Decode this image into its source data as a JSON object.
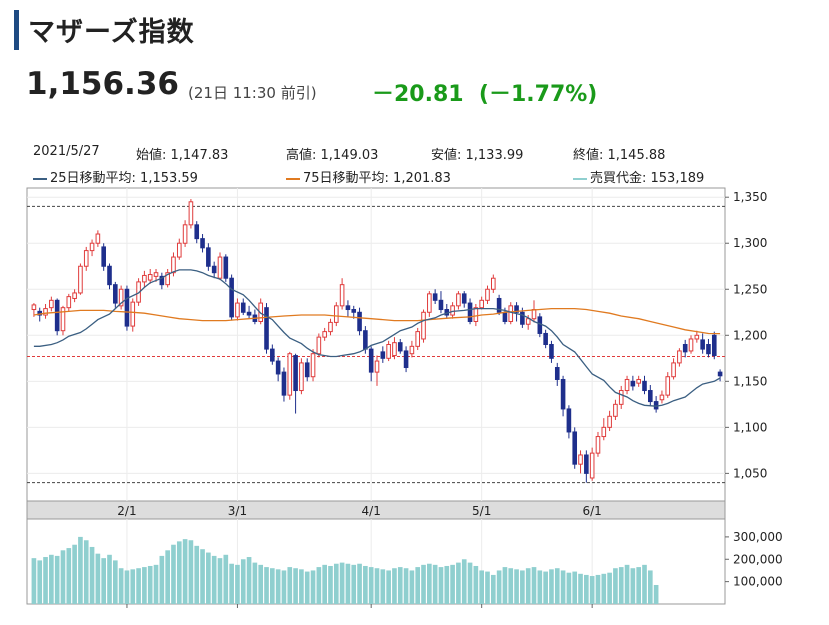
{
  "header": {
    "title": "マザーズ指数",
    "price": "1,156.36",
    "price_time": "(21日 11:30 前引)",
    "change": "－20.81",
    "change_pct": "(－1.77%)"
  },
  "info": {
    "date": "2021/5/27",
    "open": "始値: 1,147.83",
    "high": "高値: 1,149.03",
    "low": "安値: 1,133.99",
    "close": "終値: 1,145.88",
    "ma25": "25日移動平均: 1,153.59",
    "ma75": "75日移動平均: 1,201.83",
    "volume": "売買代金: 153,189"
  },
  "colors": {
    "up": "#e03c3c",
    "down": "#1e2f8c",
    "ma25": "#3b5f82",
    "ma75": "#e07a20",
    "volume": "#8fcfcf",
    "ref_line": "#e03c3c",
    "change": "#1a9a1a"
  },
  "chart_data": [
    {
      "type": "candlestick",
      "title": "",
      "x_ticks": [
        "2/1",
        "3/1",
        "4/1",
        "5/1",
        "6/1"
      ],
      "x_tick_index": [
        16,
        35,
        58,
        77,
        96
      ],
      "ylim": [
        1020,
        1360
      ],
      "y_ticks": [
        1050,
        1100,
        1150,
        1200,
        1250,
        1300,
        1350
      ],
      "y_tick_labels": [
        "1,050",
        "1,100",
        "1,150",
        "1,200",
        "1,250",
        "1,300",
        "1,350"
      ],
      "reference_lines": [
        1177,
        1340,
        1040
      ],
      "candles": [
        [
          1228,
          1233,
          1220,
          1235
        ],
        [
          1226,
          1222,
          1215,
          1230
        ],
        [
          1222,
          1229,
          1218,
          1234
        ],
        [
          1230,
          1238,
          1226,
          1242
        ],
        [
          1238,
          1205,
          1200,
          1240
        ],
        [
          1205,
          1230,
          1200,
          1232
        ],
        [
          1230,
          1242,
          1226,
          1245
        ],
        [
          1240,
          1246,
          1236,
          1250
        ],
        [
          1246,
          1275,
          1244,
          1278
        ],
        [
          1275,
          1292,
          1270,
          1296
        ],
        [
          1292,
          1300,
          1286,
          1304
        ],
        [
          1300,
          1310,
          1296,
          1314
        ],
        [
          1296,
          1275,
          1270,
          1300
        ],
        [
          1275,
          1255,
          1250,
          1278
        ],
        [
          1255,
          1235,
          1230,
          1258
        ],
        [
          1232,
          1250,
          1228,
          1254
        ],
        [
          1250,
          1210,
          1205,
          1254
        ],
        [
          1210,
          1236,
          1204,
          1240
        ],
        [
          1236,
          1258,
          1232,
          1262
        ],
        [
          1258,
          1265,
          1252,
          1270
        ],
        [
          1260,
          1266,
          1256,
          1272
        ],
        [
          1264,
          1268,
          1258,
          1272
        ],
        [
          1264,
          1255,
          1250,
          1268
        ],
        [
          1255,
          1268,
          1252,
          1272
        ],
        [
          1268,
          1285,
          1264,
          1290
        ],
        [
          1285,
          1300,
          1282,
          1305
        ],
        [
          1300,
          1320,
          1296,
          1325
        ],
        [
          1320,
          1345,
          1316,
          1348
        ],
        [
          1320,
          1305,
          1300,
          1324
        ],
        [
          1305,
          1295,
          1290,
          1310
        ],
        [
          1295,
          1275,
          1270,
          1300
        ],
        [
          1275,
          1268,
          1262,
          1280
        ],
        [
          1262,
          1285,
          1260,
          1290
        ],
        [
          1285,
          1262,
          1258,
          1288
        ],
        [
          1262,
          1220,
          1216,
          1266
        ],
        [
          1220,
          1235,
          1216,
          1240
        ],
        [
          1235,
          1225,
          1222,
          1240
        ],
        [
          1225,
          1222,
          1218,
          1232
        ],
        [
          1222,
          1215,
          1212,
          1228
        ],
        [
          1215,
          1235,
          1212,
          1240
        ],
        [
          1230,
          1185,
          1180,
          1235
        ],
        [
          1185,
          1172,
          1168,
          1190
        ],
        [
          1172,
          1158,
          1150,
          1176
        ],
        [
          1160,
          1135,
          1128,
          1165
        ],
        [
          1135,
          1180,
          1130,
          1182
        ],
        [
          1178,
          1140,
          1115,
          1180
        ],
        [
          1140,
          1170,
          1136,
          1175
        ],
        [
          1170,
          1155,
          1150,
          1175
        ],
        [
          1155,
          1180,
          1150,
          1185
        ],
        [
          1180,
          1198,
          1176,
          1202
        ],
        [
          1198,
          1204,
          1194,
          1208
        ],
        [
          1204,
          1214,
          1200,
          1218
        ],
        [
          1214,
          1232,
          1210,
          1236
        ],
        [
          1232,
          1255,
          1228,
          1262
        ],
        [
          1232,
          1228,
          1220,
          1238
        ],
        [
          1228,
          1225,
          1218,
          1232
        ],
        [
          1225,
          1205,
          1200,
          1230
        ],
        [
          1205,
          1185,
          1180,
          1210
        ],
        [
          1185,
          1160,
          1150,
          1188
        ],
        [
          1160,
          1172,
          1145,
          1178
        ],
        [
          1182,
          1175,
          1170,
          1188
        ],
        [
          1175,
          1190,
          1172,
          1194
        ],
        [
          1178,
          1192,
          1174,
          1198
        ],
        [
          1192,
          1183,
          1180,
          1196
        ],
        [
          1183,
          1165,
          1160,
          1188
        ],
        [
          1180,
          1188,
          1176,
          1194
        ],
        [
          1188,
          1204,
          1184,
          1208
        ],
        [
          1196,
          1225,
          1192,
          1228
        ],
        [
          1225,
          1245,
          1220,
          1248
        ],
        [
          1245,
          1238,
          1234,
          1250
        ],
        [
          1238,
          1228,
          1224,
          1248
        ],
        [
          1228,
          1222,
          1218,
          1234
        ],
        [
          1222,
          1232,
          1218,
          1236
        ],
        [
          1232,
          1245,
          1228,
          1248
        ],
        [
          1245,
          1235,
          1230,
          1248
        ],
        [
          1235,
          1215,
          1212,
          1240
        ],
        [
          1215,
          1230,
          1210,
          1234
        ],
        [
          1230,
          1238,
          1228,
          1242
        ],
        [
          1238,
          1250,
          1234,
          1254
        ],
        [
          1250,
          1262,
          1246,
          1266
        ],
        [
          1240,
          1225,
          1222,
          1244
        ],
        [
          1225,
          1215,
          1212,
          1230
        ],
        [
          1215,
          1232,
          1212,
          1236
        ],
        [
          1232,
          1225,
          1215,
          1236
        ],
        [
          1225,
          1212,
          1208,
          1230
        ],
        [
          1212,
          1218,
          1206,
          1222
        ],
        [
          1218,
          1228,
          1214,
          1238
        ],
        [
          1220,
          1202,
          1198,
          1224
        ],
        [
          1202,
          1190,
          1186,
          1206
        ],
        [
          1190,
          1175,
          1170,
          1194
        ],
        [
          1165,
          1152,
          1145,
          1170
        ],
        [
          1152,
          1120,
          1112,
          1156
        ],
        [
          1120,
          1095,
          1088,
          1124
        ],
        [
          1095,
          1060,
          1055,
          1100
        ],
        [
          1060,
          1070,
          1050,
          1075
        ],
        [
          1070,
          1050,
          1040,
          1075
        ],
        [
          1045,
          1072,
          1042,
          1078
        ],
        [
          1072,
          1090,
          1068,
          1095
        ],
        [
          1090,
          1100,
          1086,
          1110
        ],
        [
          1100,
          1112,
          1096,
          1118
        ],
        [
          1112,
          1125,
          1108,
          1130
        ],
        [
          1125,
          1140,
          1120,
          1145
        ],
        [
          1140,
          1152,
          1136,
          1156
        ],
        [
          1150,
          1145,
          1140,
          1156
        ],
        [
          1148,
          1152,
          1144,
          1156
        ],
        [
          1150,
          1140,
          1136,
          1156
        ],
        [
          1140,
          1128,
          1124,
          1146
        ],
        [
          1128,
          1120,
          1116,
          1134
        ],
        [
          1130,
          1135,
          1126,
          1140
        ],
        [
          1135,
          1155,
          1132,
          1160
        ],
        [
          1155,
          1170,
          1152,
          1175
        ],
        [
          1170,
          1183,
          1166,
          1186
        ],
        [
          1190,
          1182,
          1176,
          1195
        ],
        [
          1183,
          1196,
          1180,
          1200
        ],
        [
          1196,
          1200,
          1192,
          1205
        ],
        [
          1195,
          1185,
          1180,
          1202
        ],
        [
          1190,
          1180,
          1176,
          1196
        ],
        [
          1200,
          1178,
          1174,
          1204
        ],
        [
          1160,
          1156,
          1150,
          1163
        ]
      ],
      "ma25": [
        1188,
        1188,
        1190,
        1192,
        1195,
        1199,
        1203,
        1207,
        1212,
        1217,
        1223,
        1229,
        1235,
        1240,
        1246,
        1252,
        1257,
        1262,
        1266,
        1269,
        1271,
        1271,
        1270,
        1268,
        1265,
        1261,
        1256,
        1250,
        1244,
        1238,
        1231,
        1224,
        1217,
        1210,
        1203,
        1197,
        1191,
        1186,
        1182,
        1179,
        1177,
        1177,
        1178,
        1180,
        1182,
        1185,
        1189,
        1193,
        1197,
        1201,
        1205,
        1209,
        1213,
        1216,
        1219,
        1222,
        1224,
        1226,
        1227,
        1228,
        1229,
        1229,
        1229,
        1228,
        1227,
        1225,
        1222,
        1219,
        1215,
        1210,
        1205,
        1198,
        1190,
        1182,
        1174,
        1166,
        1158,
        1151,
        1144,
        1138,
        1133,
        1129,
        1126,
        1124,
        1123,
        1124,
        1126,
        1129,
        1133,
        1138,
        1143,
        1147,
        1150,
        1153.6
      ],
      "ma75": [
        1222,
        1224,
        1225,
        1226,
        1227,
        1227,
        1227,
        1226,
        1225,
        1224,
        1222,
        1220,
        1218,
        1217,
        1216,
        1216,
        1216,
        1217,
        1218,
        1219,
        1220,
        1221,
        1222,
        1222,
        1222,
        1221,
        1220,
        1219,
        1218,
        1217,
        1216,
        1216,
        1216,
        1217,
        1218,
        1219,
        1220,
        1222,
        1223,
        1225,
        1226,
        1227,
        1228,
        1229,
        1229,
        1229,
        1228,
        1226,
        1224,
        1221,
        1218,
        1215,
        1212,
        1209,
        1206,
        1204,
        1202,
        1201.8
      ],
      "volume_ylim": [
        0,
        380000
      ],
      "volume_ticks": [
        100000,
        200000,
        300000
      ],
      "volume_tick_labels": [
        "100,000",
        "200,000",
        "300,000"
      ],
      "volume": [
        205000,
        195000,
        210000,
        220000,
        215000,
        240000,
        250000,
        265000,
        300000,
        285000,
        255000,
        225000,
        205000,
        220000,
        195000,
        160000,
        150000,
        155000,
        160000,
        165000,
        170000,
        175000,
        215000,
        240000,
        265000,
        280000,
        290000,
        285000,
        260000,
        245000,
        230000,
        215000,
        205000,
        220000,
        180000,
        175000,
        200000,
        210000,
        185000,
        175000,
        165000,
        160000,
        155000,
        150000,
        165000,
        160000,
        155000,
        145000,
        150000,
        165000,
        175000,
        170000,
        180000,
        185000,
        180000,
        175000,
        180000,
        170000,
        165000,
        160000,
        155000,
        150000,
        160000,
        165000,
        160000,
        150000,
        165000,
        175000,
        180000,
        175000,
        165000,
        170000,
        175000,
        185000,
        200000,
        185000,
        170000,
        150000,
        145000,
        130000,
        150000,
        165000,
        160000,
        155000,
        150000,
        160000,
        165000,
        150000,
        145000,
        155000,
        160000,
        150000,
        140000,
        145000,
        135000,
        130000,
        125000,
        130000,
        135000,
        140000,
        160000,
        165000,
        175000,
        160000,
        165000,
        175000,
        150000,
        85000
      ]
    }
  ]
}
